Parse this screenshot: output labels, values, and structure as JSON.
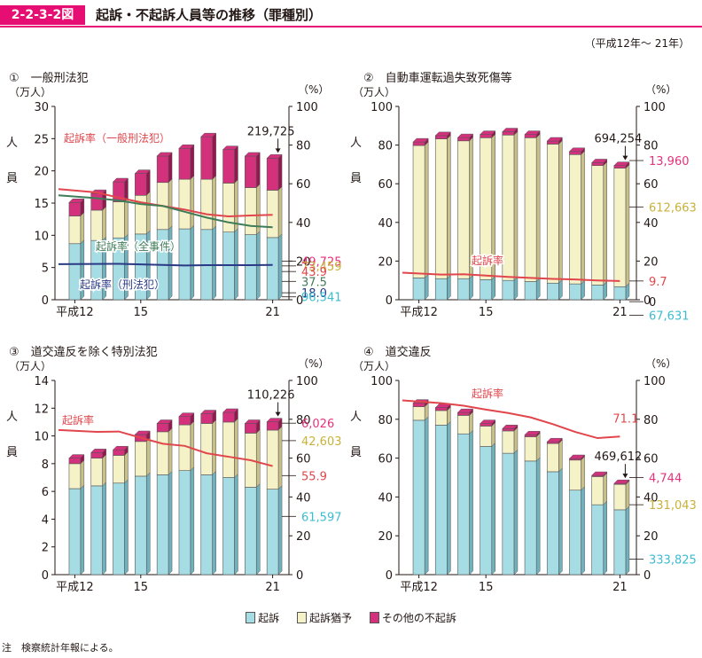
{
  "header": {
    "figure_id": "2-2-3-2図",
    "title": "起訴・不起訴人員等の推移（罪種別）"
  },
  "period_note": "（平成12年～ 21年）",
  "legend": [
    {
      "label": "起訴",
      "color": "#a6dde4"
    },
    {
      "label": "起訴猶予",
      "color": "#f6f2c8"
    },
    {
      "label": "その他の不起訴",
      "color": "#d4317d"
    }
  ],
  "footnote": "注　検察統計年報による。",
  "colors": {
    "prosecution": "#a6dde4",
    "prosecution_side": "#6fb2bd",
    "suspension": "#f6f2c8",
    "suspension_side": "#c9c089",
    "other": "#d4317d",
    "other_side": "#96174f",
    "rate_red": "#e0464b",
    "rate_green": "#3f7c58",
    "rate_navy": "#2a3a86",
    "val_pink": "#e4327b",
    "val_yellow": "#c8b23a",
    "val_cyan": "#3dbcd0"
  },
  "chart_data": [
    {
      "title": "①　一般刑法犯",
      "type": "bar",
      "ylabel_left": "（万人）",
      "ylabel_right": "（%）",
      "side_label": [
        "人",
        "員"
      ],
      "ylim": [
        0,
        30
      ],
      "yticks": [
        "0",
        "5",
        "10",
        "15",
        "20",
        "25",
        "30"
      ],
      "y2lim": [
        0,
        100
      ],
      "y2ticks": [
        "0",
        "20",
        "40",
        "60",
        "80",
        "100"
      ],
      "categories": [
        "平成12",
        "",
        "",
        "15",
        "",
        "",
        "",
        "",
        "",
        "21"
      ],
      "series": [
        {
          "name": "起訴",
          "values": [
            8.7,
            9.2,
            9.6,
            10.2,
            10.9,
            11.0,
            10.9,
            10.5,
            10.1,
            9.65
          ]
        },
        {
          "name": "起訴猶予",
          "values": [
            4.3,
            4.7,
            5.6,
            6.0,
            7.3,
            7.7,
            7.8,
            7.6,
            7.3,
            7.35
          ]
        },
        {
          "name": "その他の不起訴",
          "values": [
            2.1,
            2.6,
            3.1,
            3.4,
            4.1,
            4.8,
            6.6,
            5.2,
            4.9,
            4.97
          ]
        }
      ],
      "total_label": "219,725",
      "end_values": [
        {
          "text": "49,725",
          "color": "#e4327b",
          "at": 20
        },
        {
          "text": "73,459",
          "color": "#c8b23a",
          "at": 17.5
        },
        {
          "text": "43.9",
          "color": "#e0464b",
          "at": 14.6
        },
        {
          "text": "37.5",
          "color": "#3f7c58",
          "at": 9.5
        },
        {
          "text": "18.0",
          "color": "#2a3a86",
          "at": 3.6
        },
        {
          "text": "96,541",
          "color": "#3dbcd0",
          "at": 1.5
        }
      ],
      "rate_lines": [
        {
          "name": "起訴率（一般刑法犯）",
          "color": "#e0464b",
          "values": [
            57.2,
            55.5,
            52.8,
            50.4,
            48.5,
            46.6,
            44.2,
            43.1,
            43.6,
            43.9
          ],
          "label": {
            "text": "起訴率（一般刑法犯）",
            "x": 72,
            "y": 160
          }
        },
        {
          "name": "起訴率（全事件）",
          "color": "#3f7c58",
          "values": [
            54.0,
            52.5,
            51.3,
            49.5,
            48.5,
            45.5,
            42.5,
            40.0,
            38.2,
            37.5
          ],
          "label": {
            "text": "起訴率（全事件）",
            "x": 108,
            "y": 282
          }
        },
        {
          "name": "起訴率（刑法犯）",
          "color": "#2a3a86",
          "values": [
            18.4,
            18.5,
            18.6,
            18.3,
            18.0,
            17.7,
            17.9,
            17.9,
            17.9,
            18.0
          ],
          "label": {
            "text": "起訴率（刑法犯）",
            "x": 90,
            "y": 325
          }
        }
      ]
    },
    {
      "title": "②　自動車運転過失致死傷等",
      "type": "bar",
      "ylabel_left": "（万人）",
      "ylabel_right": "（%）",
      "side_label": [
        "人",
        "員"
      ],
      "ylim": [
        0,
        100
      ],
      "yticks": [
        "0",
        "20",
        "40",
        "60",
        "80",
        "100"
      ],
      "y2lim": [
        0,
        100
      ],
      "y2ticks": [
        "0",
        "20",
        "40",
        "60",
        "80",
        "100"
      ],
      "categories": [
        "平成12",
        "",
        "",
        "15",
        "",
        "",
        "",
        "",
        "",
        "21"
      ],
      "series": [
        {
          "name": "起訴",
          "values": [
            11.3,
            10.9,
            10.9,
            10.4,
            10.0,
            9.4,
            8.6,
            8.2,
            7.6,
            6.76
          ]
        },
        {
          "name": "起訴猶予",
          "values": [
            68.5,
            72.3,
            71.3,
            73.4,
            75.2,
            74.4,
            71.9,
            66.9,
            61.8,
            61.27
          ]
        },
        {
          "name": "その他の不起訴",
          "values": [
            1.8,
            1.7,
            1.7,
            1.7,
            1.7,
            1.7,
            1.6,
            1.6,
            1.5,
            1.4
          ]
        }
      ],
      "total_label": "694,254",
      "end_values": [
        {
          "text": "13,960",
          "color": "#e4327b",
          "at": 72
        },
        {
          "text": "612,663",
          "color": "#c8b23a",
          "at": 48
        },
        {
          "text": "9.7",
          "color": "#e0464b",
          "at": 9.7
        },
        {
          "text": "0",
          "color": "#231815",
          "at": -1
        },
        {
          "text": "67,631",
          "color": "#3dbcd0",
          "at": -8
        }
      ],
      "rate_lines": [
        {
          "name": "起訴率",
          "color": "#e0464b",
          "values": [
            14.0,
            13.0,
            13.2,
            12.5,
            11.8,
            11.3,
            10.8,
            10.5,
            10.0,
            9.7
          ],
          "label": {
            "text": "起訴率",
            "x": 532,
            "y": 298
          }
        }
      ]
    },
    {
      "title": "③　道交違反を除く特別法犯",
      "type": "bar",
      "ylabel_left": "（万人）",
      "ylabel_right": "（%）",
      "side_label": [
        "人",
        "員"
      ],
      "ylim": [
        0,
        14
      ],
      "yticks": [
        "0",
        "2",
        "4",
        "6",
        "8",
        "10",
        "12",
        "14"
      ],
      "y2lim": [
        0,
        100
      ],
      "y2ticks": [
        "0",
        "20",
        "40",
        "60",
        "80",
        "100"
      ],
      "categories": [
        "平成12",
        "",
        "",
        "15",
        "",
        "",
        "",
        "",
        "",
        "21"
      ],
      "series": [
        {
          "name": "起訴",
          "values": [
            6.2,
            6.4,
            6.6,
            7.1,
            7.2,
            7.5,
            7.2,
            7.0,
            6.3,
            6.16
          ]
        },
        {
          "name": "起訴猶予",
          "values": [
            1.8,
            2.0,
            2.0,
            2.5,
            3.1,
            3.3,
            3.7,
            4.0,
            3.9,
            4.26
          ]
        },
        {
          "name": "その他の不起訴",
          "values": [
            0.4,
            0.4,
            0.4,
            0.5,
            0.6,
            0.6,
            0.7,
            0.7,
            0.7,
            0.6
          ]
        }
      ],
      "total_label": "110,226",
      "end_values": [
        {
          "text": "6,026",
          "color": "#e4327b",
          "at": 78
        },
        {
          "text": "42,603",
          "color": "#c8b23a",
          "at": 69
        },
        {
          "text": "55.9",
          "color": "#e0464b",
          "at": 51
        },
        {
          "text": "61,597",
          "color": "#3dbcd0",
          "at": 30
        }
      ],
      "rate_lines": [
        {
          "name": "起訴率",
          "color": "#e0464b",
          "values": [
            74.5,
            73.5,
            73.7,
            70.5,
            67.4,
            66.3,
            62.5,
            60.7,
            58.9,
            55.9
          ],
          "label": {
            "text": "起訴率",
            "x": 70,
            "y": 478
          }
        }
      ]
    },
    {
      "title": "④　道交違反",
      "type": "bar",
      "ylabel_left": "（万人）",
      "ylabel_right": "（%）",
      "side_label": [
        "人",
        "員"
      ],
      "ylim": [
        0,
        100
      ],
      "yticks": [
        "0",
        "20",
        "40",
        "60",
        "80",
        "100"
      ],
      "y2lim": [
        0,
        100
      ],
      "y2ticks": [
        "0",
        "20",
        "40",
        "60",
        "80",
        "100"
      ],
      "categories": [
        "平成12",
        "",
        "",
        "15",
        "",
        "",
        "",
        "",
        "",
        "21"
      ],
      "series": [
        {
          "name": "起訴",
          "values": [
            79.5,
            77.0,
            72.5,
            66.0,
            62.5,
            58.5,
            53.0,
            43.5,
            36.0,
            33.38
          ]
        },
        {
          "name": "起訴猶予",
          "values": [
            7.0,
            7.5,
            9.5,
            10.5,
            11.5,
            12.5,
            14.5,
            15.5,
            14.5,
            13.1
          ]
        },
        {
          "name": "その他の不起訴",
          "values": [
            1.8,
            1.5,
            1.5,
            1.3,
            1.2,
            1.0,
            0.9,
            0.8,
            0.6,
            0.47
          ]
        }
      ],
      "total_label": "469,612",
      "end_values": [
        {
          "text": "4,744",
          "color": "#e4327b",
          "at": 50
        },
        {
          "text": "131,043",
          "color": "#c8b23a",
          "at": 36
        },
        {
          "text": "333,825",
          "color": "#3dbcd0",
          "at": 8
        }
      ],
      "rate_lines": [
        {
          "name": "起訴率",
          "color": "#e0464b",
          "values": [
            89.7,
            88.3,
            87.0,
            85.0,
            83.2,
            81.0,
            77.5,
            73.5,
            70.3,
            71.1
          ],
          "label": {
            "text": "起訴率",
            "x": 532,
            "y": 448
          }
        }
      ],
      "rate_value_label": {
        "text": "71.1",
        "color": "#e0464b"
      }
    }
  ]
}
